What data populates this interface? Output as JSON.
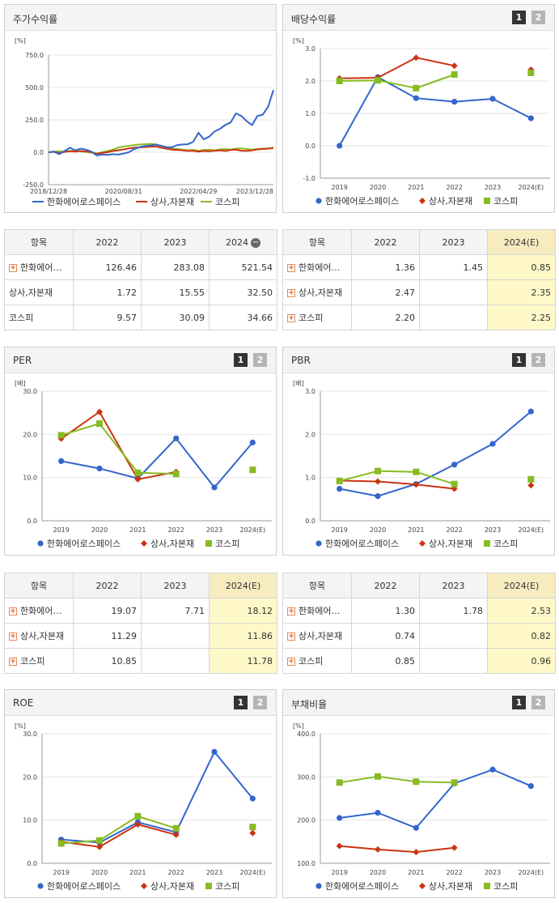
{
  "colors": {
    "company": "#3366cc",
    "sector": "#cc3311",
    "kospi": "#88bb22"
  },
  "pager": {
    "p1": "1",
    "p2": "2"
  },
  "stock": {
    "title": "주가수익률",
    "chart_data": {
      "type": "line",
      "unit": "[%]",
      "yticks": [
        "750.0",
        "500.0",
        "250.0",
        "0.0",
        "-250.0"
      ],
      "ylim": [
        -250,
        750
      ],
      "xticks": [
        "2018/12/28",
        "2020/08/31",
        "2022/04/29",
        "2023/12/28"
      ],
      "series": [
        {
          "name": "한화에어로스페이스",
          "values": [
            0,
            5,
            -15,
            10,
            35,
            15,
            28,
            20,
            5,
            -25,
            -18,
            -20,
            -15,
            -18,
            -10,
            0,
            25,
            40,
            48,
            52,
            60,
            50,
            40,
            38,
            55,
            60,
            62,
            80,
            150,
            100,
            120,
            160,
            180,
            210,
            230,
            300,
            280,
            240,
            210,
            280,
            290,
            350,
            480
          ]
        },
        {
          "name": "상사,자본재",
          "values": [
            0,
            3,
            -5,
            2,
            8,
            5,
            10,
            6,
            2,
            -12,
            -5,
            0,
            10,
            15,
            22,
            30,
            35,
            38,
            40,
            42,
            45,
            35,
            28,
            20,
            18,
            15,
            10,
            12,
            5,
            10,
            8,
            12,
            15,
            10,
            18,
            20,
            12,
            10,
            15,
            22,
            25,
            28,
            32
          ]
        },
        {
          "name": "코스피",
          "values": [
            0,
            4,
            8,
            5,
            10,
            12,
            6,
            2,
            -3,
            -10,
            0,
            10,
            20,
            35,
            45,
            50,
            55,
            60,
            62,
            65,
            60,
            50,
            40,
            30,
            25,
            20,
            15,
            18,
            12,
            18,
            20,
            15,
            22,
            25,
            20,
            28,
            30,
            25,
            20,
            25,
            28,
            30,
            35
          ]
        }
      ]
    }
  },
  "dividend": {
    "title": "배당수익률",
    "chart_data": {
      "type": "line",
      "unit": "[%]",
      "yticks": [
        "3.0",
        "2.0",
        "1.0",
        "0.0",
        "-1.0"
      ],
      "ylim": [
        -1,
        3
      ],
      "categories": [
        "2019",
        "2020",
        "2021",
        "2022",
        "2023",
        "2024(E)"
      ],
      "series": [
        {
          "name": "한화에어로스페이스",
          "values": [
            0.0,
            2.12,
            1.47,
            1.36,
            1.45,
            0.85
          ]
        },
        {
          "name": "상사,자본재",
          "values": [
            2.08,
            2.1,
            2.72,
            2.47,
            null,
            2.35
          ]
        },
        {
          "name": "코스피",
          "values": [
            2.0,
            2.02,
            1.78,
            2.2,
            null,
            2.25
          ]
        }
      ]
    }
  },
  "per": {
    "title": "PER",
    "chart_data": {
      "type": "line",
      "unit": "[배]",
      "yticks": [
        "30.0",
        "20.0",
        "10.0",
        "0.0"
      ],
      "ylim": [
        0,
        30
      ],
      "categories": [
        "2019",
        "2020",
        "2021",
        "2022",
        "2023",
        "2024(E)"
      ],
      "series": [
        {
          "name": "한화에어로스페이스",
          "values": [
            13.8,
            12.1,
            9.8,
            19.07,
            7.71,
            18.12
          ]
        },
        {
          "name": "상사,자본재",
          "values": [
            19.0,
            25.2,
            9.6,
            11.29,
            null,
            11.86
          ]
        },
        {
          "name": "코스피",
          "values": [
            19.8,
            22.5,
            11.1,
            10.85,
            null,
            11.78
          ]
        }
      ]
    }
  },
  "pbr": {
    "title": "PBR",
    "chart_data": {
      "type": "line",
      "unit": "[배]",
      "yticks": [
        "3.0",
        "2.0",
        "1.0",
        "0.0"
      ],
      "ylim": [
        0,
        3
      ],
      "categories": [
        "2019",
        "2020",
        "2021",
        "2022",
        "2023",
        "2024(E)"
      ],
      "series": [
        {
          "name": "한화에어로스페이스",
          "values": [
            0.74,
            0.57,
            0.85,
            1.3,
            1.78,
            2.53
          ]
        },
        {
          "name": "상사,자본재",
          "values": [
            0.93,
            0.91,
            0.84,
            0.74,
            null,
            0.82
          ]
        },
        {
          "name": "코스피",
          "values": [
            0.92,
            1.15,
            1.13,
            0.85,
            null,
            0.96
          ]
        }
      ]
    }
  },
  "roe": {
    "title": "ROE",
    "chart_data": {
      "type": "line",
      "unit": "[%]",
      "yticks": [
        "30.0",
        "20.0",
        "10.0",
        "0.0"
      ],
      "ylim": [
        0,
        30
      ],
      "categories": [
        "2019",
        "2020",
        "2021",
        "2022",
        "2023",
        "2024(E)"
      ],
      "series": [
        {
          "name": "한화에어로스페이스",
          "values": [
            5.5,
            4.8,
            9.5,
            7.2,
            25.8,
            15.0
          ]
        },
        {
          "name": "상사,자본재",
          "values": [
            5.0,
            3.8,
            9.0,
            6.6,
            null,
            7.0
          ]
        },
        {
          "name": "코스피",
          "values": [
            4.6,
            5.3,
            10.9,
            8.1,
            null,
            8.4
          ]
        }
      ]
    }
  },
  "debt": {
    "title": "부채비율",
    "chart_data": {
      "type": "line",
      "unit": "[%]",
      "yticks": [
        "400.0",
        "300.0",
        "200.0",
        "100.0"
      ],
      "ylim": [
        100,
        400
      ],
      "categories": [
        "2019",
        "2020",
        "2021",
        "2022",
        "2023",
        "2024(E)"
      ],
      "series": [
        {
          "name": "한화에어로스페이스",
          "values": [
            205,
            217,
            182,
            285,
            317,
            279
          ]
        },
        {
          "name": "상사,자본재",
          "values": [
            140,
            132,
            126,
            136,
            null,
            null
          ]
        },
        {
          "name": "코스피",
          "values": [
            287,
            301,
            289,
            287,
            null,
            null
          ]
        }
      ]
    }
  },
  "tables": {
    "t1": {
      "header": [
        "항목",
        "2022",
        "2023",
        "2024"
      ],
      "rows": [
        {
          "name": "한화에어…",
          "plus": true,
          "v": [
            "126.46",
            "283.08",
            "521.54"
          ]
        },
        {
          "name": "상사,자본재",
          "plus": false,
          "v": [
            "1.72",
            "15.55",
            "32.50"
          ]
        },
        {
          "name": "코스피",
          "plus": false,
          "v": [
            "9.57",
            "30.09",
            "34.66"
          ]
        }
      ]
    },
    "t2": {
      "header": [
        "항목",
        "2022",
        "2023",
        "2024(E)"
      ],
      "rows": [
        {
          "name": "한화에어…",
          "plus": true,
          "v": [
            "1.36",
            "1.45",
            "0.85"
          ]
        },
        {
          "name": "상사,자본재",
          "plus": true,
          "v": [
            "2.47",
            "",
            "2.35"
          ]
        },
        {
          "name": "코스피",
          "plus": true,
          "v": [
            "2.20",
            "",
            "2.25"
          ]
        }
      ]
    },
    "t3": {
      "header": [
        "항목",
        "2022",
        "2023",
        "2024(E)"
      ],
      "rows": [
        {
          "name": "한화에어…",
          "plus": true,
          "v": [
            "19.07",
            "7.71",
            "18.12"
          ]
        },
        {
          "name": "상사,자본재",
          "plus": true,
          "v": [
            "11.29",
            "",
            "11.86"
          ]
        },
        {
          "name": "코스피",
          "plus": true,
          "v": [
            "10.85",
            "",
            "11.78"
          ]
        }
      ]
    },
    "t4": {
      "header": [
        "항목",
        "2022",
        "2023",
        "2024(E)"
      ],
      "rows": [
        {
          "name": "한화에어…",
          "plus": true,
          "v": [
            "1.30",
            "1.78",
            "2.53"
          ]
        },
        {
          "name": "상사,자본재",
          "plus": true,
          "v": [
            "0.74",
            "",
            "0.82"
          ]
        },
        {
          "name": "코스피",
          "plus": true,
          "v": [
            "0.85",
            "",
            "0.96"
          ]
        }
      ]
    }
  }
}
